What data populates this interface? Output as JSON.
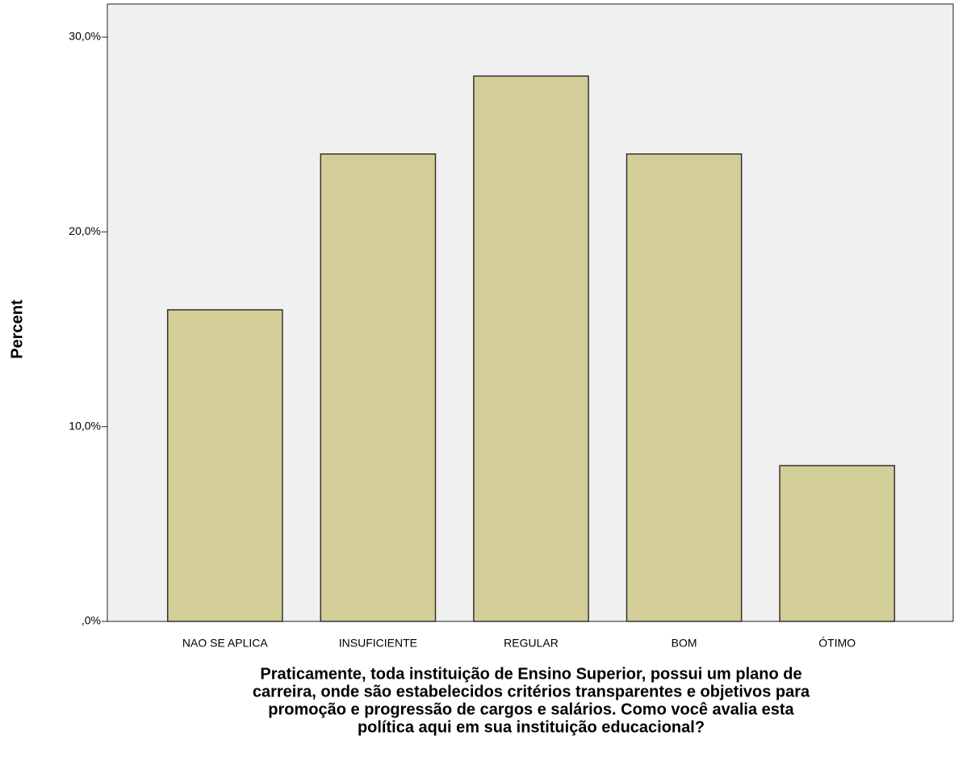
{
  "chart_data": {
    "type": "bar",
    "categories": [
      "NAO SE APLICA",
      "INSUFICIENTE",
      "REGULAR",
      "BOM",
      "ÓTIMO"
    ],
    "values": [
      16,
      24,
      28,
      24,
      8
    ],
    "color": "#d3ce97",
    "ylabel": "Percent",
    "xlabel": [
      "Praticamente, toda instituição de Ensino Superior, possui um plano de",
      "carreira, onde são estabelecidos critérios transparentes e objetivos para",
      "promoção e progressão de cargos e salários. Como você avalia esta",
      "política aqui em sua instituição educacional?"
    ],
    "ylim": [
      0,
      31.7
    ],
    "yticks": [
      {
        "value": 0,
        "label": ",0%"
      },
      {
        "value": 10,
        "label": "10,0%"
      },
      {
        "value": 20,
        "label": "20,0%"
      },
      {
        "value": 30,
        "label": "30,0%"
      }
    ],
    "grid": false
  }
}
